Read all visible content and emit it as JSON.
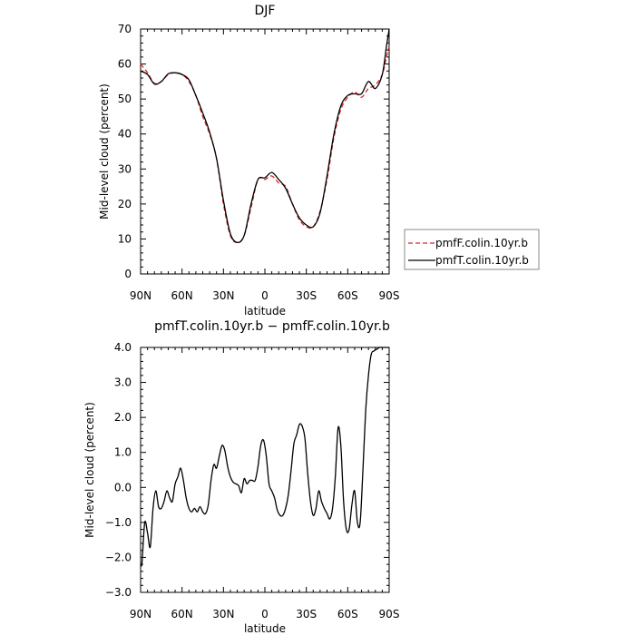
{
  "chart_data": [
    {
      "type": "line",
      "title": "DJF",
      "xlabel": "latitude",
      "ylabel": "Mid-level cloud (percent)",
      "xlim": [
        -90,
        90
      ],
      "ylim": [
        0,
        70
      ],
      "x_ticks": [
        -90,
        -60,
        -30,
        0,
        30,
        60,
        90
      ],
      "x_tick_labels": [
        "90N",
        "60N",
        "30N",
        "0",
        "30S",
        "60S",
        "90S"
      ],
      "y_ticks": [
        0,
        10,
        20,
        30,
        40,
        50,
        60,
        70
      ],
      "y_tick_labels": [
        "0",
        "10",
        "20",
        "30",
        "40",
        "50",
        "60",
        "70"
      ],
      "legend": [
        {
          "label": "pmfF.colin.10yr.b",
          "color": "#dd2222",
          "dash": "dashed"
        },
        {
          "label": "pmfT.colin.10yr.b",
          "color": "#000000",
          "dash": "solid"
        }
      ],
      "series": [
        {
          "name": "pmfF.colin.10yr.b",
          "color": "#dd2222",
          "dash": "dashed",
          "x": [
            -90,
            -85,
            -80,
            -75,
            -70,
            -65,
            -60,
            -55,
            -50,
            -45,
            -40,
            -35,
            -30,
            -25,
            -20,
            -15,
            -10,
            -5,
            0,
            5,
            10,
            15,
            20,
            25,
            30,
            35,
            40,
            45,
            50,
            55,
            60,
            65,
            70,
            75,
            80,
            85,
            88,
            90
          ],
          "y": [
            60,
            57.5,
            54.5,
            55,
            57,
            57.5,
            57,
            55,
            51,
            45,
            40,
            33,
            20,
            11,
            9,
            11,
            19,
            27,
            27,
            28,
            26,
            25,
            20,
            15.5,
            13.5,
            13.5,
            18,
            27,
            39,
            47,
            50.5,
            52,
            50.5,
            53,
            54,
            57,
            62,
            65
          ]
        },
        {
          "name": "pmfT.colin.10yr.b",
          "color": "#000000",
          "dash": "solid",
          "x": [
            -90,
            -85,
            -80,
            -75,
            -70,
            -65,
            -60,
            -55,
            -50,
            -45,
            -40,
            -35,
            -30,
            -25,
            -20,
            -15,
            -10,
            -5,
            0,
            5,
            10,
            15,
            20,
            25,
            30,
            35,
            40,
            45,
            50,
            55,
            60,
            65,
            70,
            75,
            80,
            85,
            88,
            90
          ],
          "y": [
            58,
            57,
            54.3,
            55,
            57.2,
            57.5,
            57,
            55.5,
            51,
            46,
            40.5,
            33,
            21,
            11.5,
            9,
            11,
            20,
            27,
            27.5,
            29,
            27,
            24.5,
            20,
            16,
            14,
            13.5,
            17.5,
            28,
            40,
            48,
            51,
            51.5,
            51.5,
            55,
            53,
            57,
            65,
            70
          ]
        }
      ]
    },
    {
      "type": "line",
      "title": "pmfT.colin.10yr.b − pmfF.colin.10yr.b",
      "xlabel": "latitude",
      "ylabel": "Mid-level cloud (percent)",
      "xlim": [
        -90,
        90
      ],
      "ylim": [
        -3,
        4
      ],
      "x_ticks": [
        -90,
        -60,
        -30,
        0,
        30,
        60,
        90
      ],
      "x_tick_labels": [
        "90N",
        "60N",
        "30N",
        "0",
        "30S",
        "60S",
        "90S"
      ],
      "y_ticks": [
        -3,
        -2,
        -1,
        0,
        1,
        2,
        3,
        4
      ],
      "y_tick_labels": [
        "−3.0",
        "−2.0",
        "−1.0",
        "0.0",
        "1.0",
        "2.0",
        "3.0",
        "4.0"
      ],
      "series": [
        {
          "color": "#000000",
          "dash": "solid",
          "x": [
            -90,
            -89,
            -87,
            -85,
            -83,
            -81,
            -79,
            -77,
            -75,
            -73,
            -71,
            -69,
            -67,
            -65,
            -63,
            -61,
            -59,
            -57,
            -55,
            -53,
            -51,
            -49,
            -47,
            -45,
            -43,
            -41,
            -39,
            -37,
            -35,
            -33,
            -31,
            -29,
            -27,
            -25,
            -23,
            -21,
            -19,
            -17,
            -15,
            -13,
            -11,
            -9,
            -7,
            -5,
            -3,
            -1,
            1,
            3,
            5,
            7,
            9,
            11,
            13,
            15,
            17,
            19,
            21,
            23,
            25,
            27,
            29,
            31,
            33,
            35,
            37,
            39,
            41,
            43,
            45,
            47,
            49,
            51,
            53,
            55,
            57,
            59,
            61,
            63,
            65,
            67,
            69,
            71,
            73,
            75,
            77,
            79,
            81,
            83,
            85,
            87,
            88,
            89,
            90
          ],
          "y": [
            -2.2,
            -2.15,
            -1.0,
            -1.3,
            -1.7,
            -0.6,
            -0.1,
            -0.55,
            -0.6,
            -0.4,
            -0.1,
            -0.3,
            -0.4,
            0.1,
            0.3,
            0.55,
            0.2,
            -0.3,
            -0.6,
            -0.7,
            -0.6,
            -0.7,
            -0.55,
            -0.7,
            -0.75,
            -0.5,
            0.2,
            0.65,
            0.55,
            0.9,
            1.2,
            1.05,
            0.6,
            0.3,
            0.15,
            0.1,
            0.05,
            -0.15,
            0.25,
            0.1,
            0.2,
            0.2,
            0.2,
            0.6,
            1.2,
            1.35,
            0.9,
            0.1,
            -0.1,
            -0.3,
            -0.65,
            -0.8,
            -0.8,
            -0.6,
            -0.2,
            0.5,
            1.25,
            1.5,
            1.8,
            1.75,
            1.4,
            0.4,
            -0.4,
            -0.8,
            -0.6,
            -0.1,
            -0.4,
            -0.6,
            -0.75,
            -0.9,
            -0.6,
            0.3,
            1.7,
            1.2,
            -0.4,
            -1.2,
            -1.2,
            -0.5,
            -0.1,
            -1.0,
            -1.0,
            0.5,
            2.2,
            3.2,
            3.8,
            3.9,
            3.95,
            4.0,
            4.0,
            4.0,
            4.0,
            4.0,
            4.0
          ]
        }
      ]
    }
  ]
}
